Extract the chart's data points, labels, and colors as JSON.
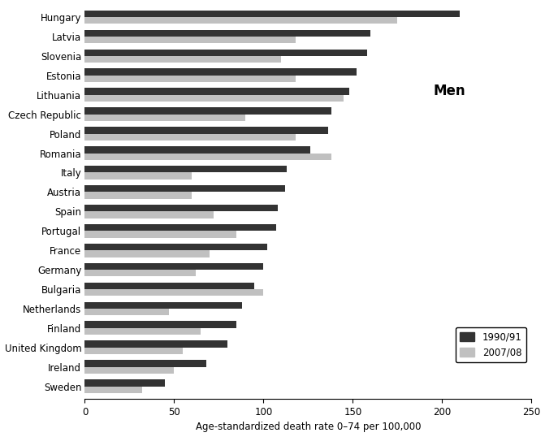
{
  "title": "Men",
  "xlabel": "Age-standardized death rate 0–74 per 100,000",
  "countries": [
    "Hungary",
    "Latvia",
    "Slovenia",
    "Estonia",
    "Lithuania",
    "Czech Republic",
    "Poland",
    "Romania",
    "Italy",
    "Austria",
    "Spain",
    "Portugal",
    "France",
    "Germany",
    "Bulgaria",
    "Netherlands",
    "Finland",
    "United Kingdom",
    "Ireland",
    "Sweden"
  ],
  "values_1990": [
    210,
    160,
    158,
    152,
    148,
    138,
    136,
    126,
    113,
    112,
    108,
    107,
    102,
    100,
    95,
    88,
    85,
    80,
    68,
    45
  ],
  "values_2007": [
    175,
    118,
    110,
    118,
    145,
    90,
    118,
    138,
    60,
    60,
    72,
    85,
    70,
    62,
    100,
    47,
    65,
    55,
    50,
    32
  ],
  "color_1990": "#333333",
  "color_2007": "#c0c0c0",
  "xlim": [
    0,
    250
  ],
  "xticks": [
    0,
    50,
    100,
    150,
    200,
    250
  ],
  "legend_labels": [
    "1990/91",
    "2007/08"
  ],
  "bar_height": 0.35,
  "title_fontsize": 12,
  "label_fontsize": 8.5,
  "tick_fontsize": 8.5
}
